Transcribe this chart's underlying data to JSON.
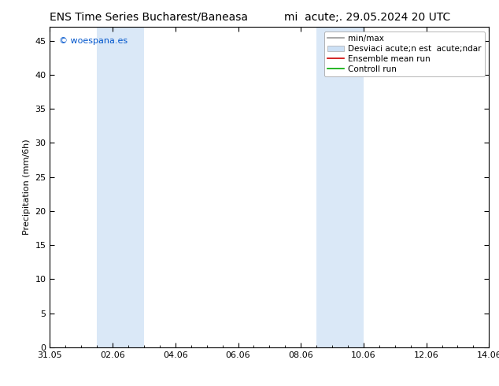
{
  "title_left": "ENS Time Series Bucharest/Baneasa",
  "title_right": "mi  acute;. 29.05.2024 20 UTC",
  "ylabel": "Precipitation (mm/6h)",
  "ylim": [
    0,
    47
  ],
  "yticks": [
    0,
    5,
    10,
    15,
    20,
    25,
    30,
    35,
    40,
    45
  ],
  "xtick_labels": [
    "31.05",
    "02.06",
    "04.06",
    "06.06",
    "08.06",
    "10.06",
    "12.06",
    "14.06"
  ],
  "xtick_positions_days": [
    0,
    2,
    4,
    6,
    8,
    10,
    12,
    14
  ],
  "shaded_regions": [
    {
      "start_day": 1.5,
      "end_day": 3.0,
      "color": "#dae8f7"
    },
    {
      "start_day": 8.5,
      "end_day": 10.0,
      "color": "#dae8f7"
    }
  ],
  "watermark_text": "© woespana.es",
  "watermark_color": "#0055cc",
  "legend_labels": [
    "min/max",
    "Desviaci acute;n est  acute;ndar",
    "Ensemble mean run",
    "Controll run"
  ],
  "legend_colors": [
    "#999999",
    "#cce0f5",
    "#cc0000",
    "#00aa00"
  ],
  "background_color": "#ffffff",
  "plot_bg_color": "#ffffff",
  "border_color": "#000000",
  "font_size_title": 10,
  "font_size_axis": 8,
  "font_size_legend": 7.5,
  "font_size_watermark": 8
}
